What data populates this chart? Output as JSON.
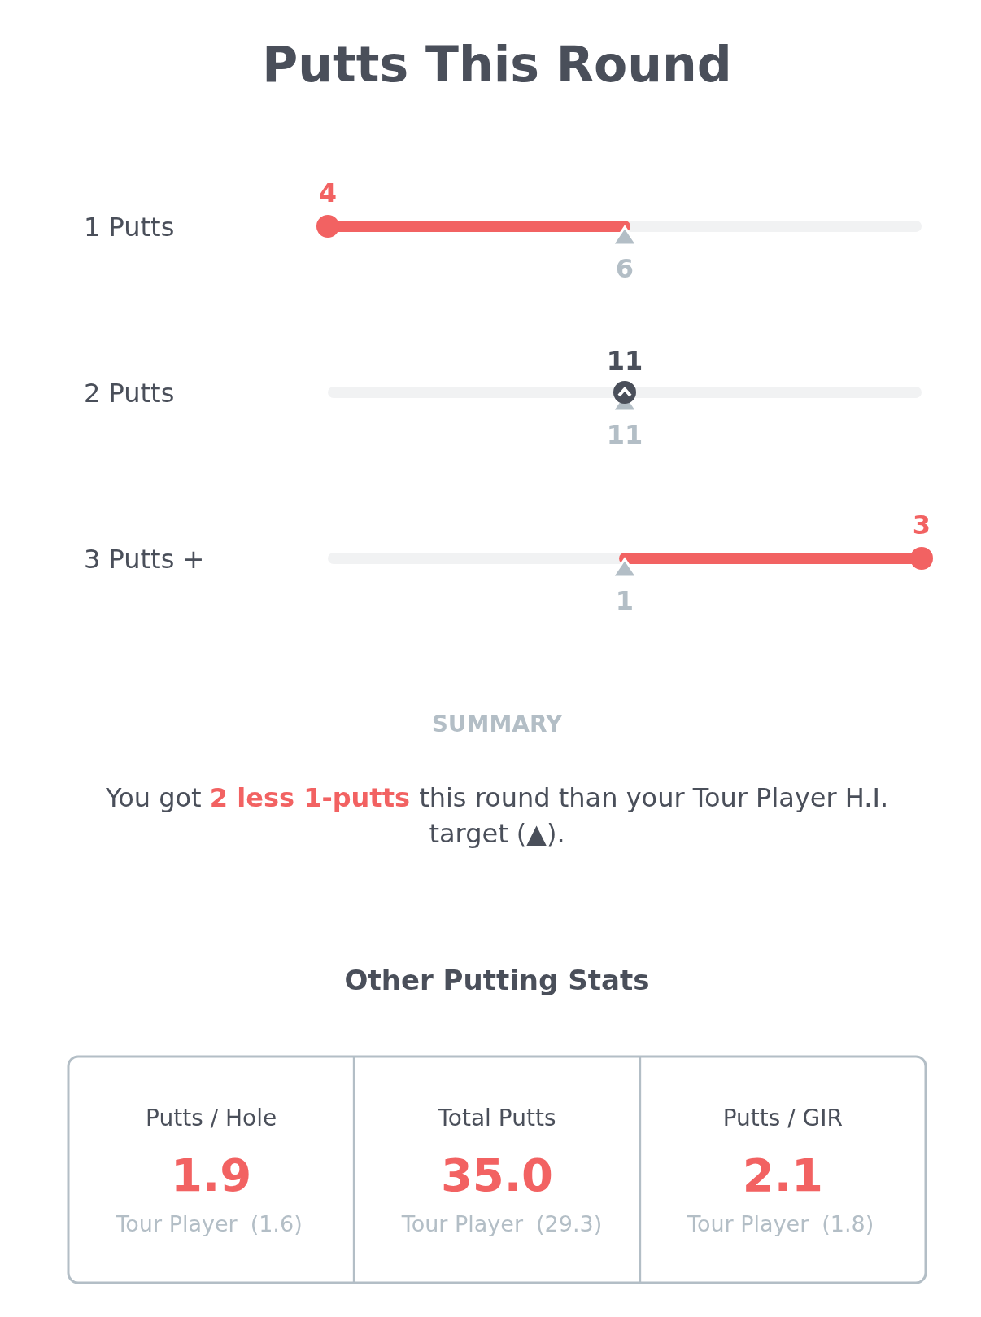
{
  "chart_data": [
    {
      "type": "other",
      "title": "Putts This Round",
      "categories": [
        "1 Putts",
        "2 Putts",
        "3 Putts +"
      ],
      "data_labels": true,
      "series": [
        {
          "color": "#f26262",
          "values": [
            4,
            11,
            3
          ]
        },
        {
          "color": "#b3bec6",
          "values": [
            6,
            11,
            1
          ]
        }
      ],
      "annotations": [
        "SUMMARY",
        "You got",
        "2 less 1-putts",
        "this round than your Tour Player H.I. target (▲)."
      ]
    },
    {
      "type": "other",
      "title": "Other Putting Stats",
      "categories": [
        "Putts / Hole",
        "Total Putts",
        "Putts / GIR"
      ],
      "series": [
        {
          "color": "#f26262",
          "values": [
            1.9,
            35.0,
            2.1
          ],
          "value_labels": [
            "1.9",
            "35.0",
            "2.1"
          ]
        },
        {
          "name": "Tour Player",
          "color": "#b3bec6",
          "values": [
            1.6,
            29.3,
            1.8
          ],
          "value_labels": [
            "(1.6)",
            "(29.3)",
            "(1.8)"
          ]
        }
      ]
    }
  ]
}
